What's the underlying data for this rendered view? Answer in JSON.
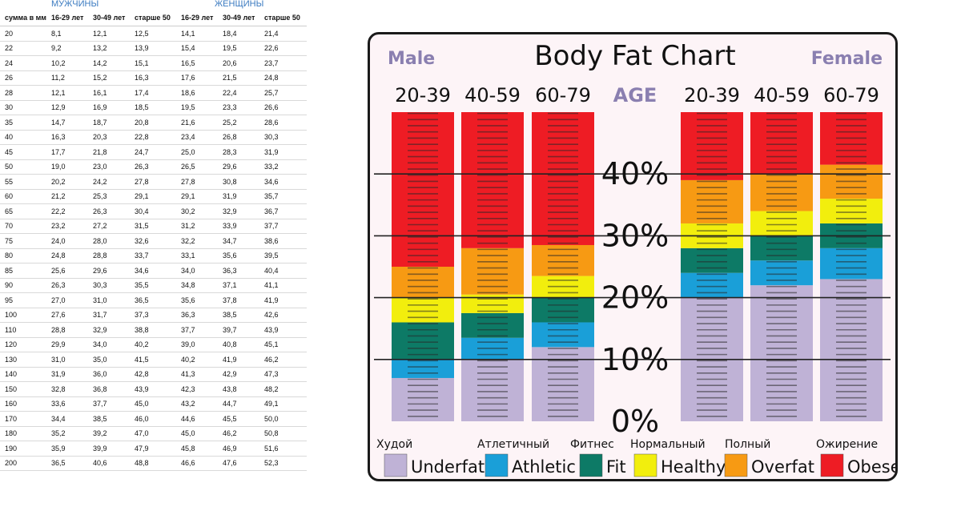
{
  "table": {
    "group_headers": {
      "men": "МУЖЧИНЫ",
      "women": "ЖЕНЩИНЫ"
    },
    "columns": [
      "сумма в мм",
      "16-29 лет",
      "30-49 лет",
      "старше 50",
      "16-29 лет",
      "30-49 лет",
      "старше 50"
    ],
    "rows": [
      [
        "20",
        "8,1",
        "12,1",
        "12,5",
        "14,1",
        "18,4",
        "21,4"
      ],
      [
        "22",
        "9,2",
        "13,2",
        "13,9",
        "15,4",
        "19,5",
        "22,6"
      ],
      [
        "24",
        "10,2",
        "14,2",
        "15,1",
        "16,5",
        "20,6",
        "23,7"
      ],
      [
        "26",
        "11,2",
        "15,2",
        "16,3",
        "17,6",
        "21,5",
        "24,8"
      ],
      [
        "28",
        "12,1",
        "16,1",
        "17,4",
        "18,6",
        "22,4",
        "25,7"
      ],
      [
        "30",
        "12,9",
        "16,9",
        "18,5",
        "19,5",
        "23,3",
        "26,6"
      ],
      [
        "35",
        "14,7",
        "18,7",
        "20,8",
        "21,6",
        "25,2",
        "28,6"
      ],
      [
        "40",
        "16,3",
        "20,3",
        "22,8",
        "23,4",
        "26,8",
        "30,3"
      ],
      [
        "45",
        "17,7",
        "21,8",
        "24,7",
        "25,0",
        "28,3",
        "31,9"
      ],
      [
        "50",
        "19,0",
        "23,0",
        "26,3",
        "26,5",
        "29,6",
        "33,2"
      ],
      [
        "55",
        "20,2",
        "24,2",
        "27,8",
        "27,8",
        "30,8",
        "34,6"
      ],
      [
        "60",
        "21,2",
        "25,3",
        "29,1",
        "29,1",
        "31,9",
        "35,7"
      ],
      [
        "65",
        "22,2",
        "26,3",
        "30,4",
        "30,2",
        "32,9",
        "36,7"
      ],
      [
        "70",
        "23,2",
        "27,2",
        "31,5",
        "31,2",
        "33,9",
        "37,7"
      ],
      [
        "75",
        "24,0",
        "28,0",
        "32,6",
        "32,2",
        "34,7",
        "38,6"
      ],
      [
        "80",
        "24,8",
        "28,8",
        "33,7",
        "33,1",
        "35,6",
        "39,5"
      ],
      [
        "85",
        "25,6",
        "29,6",
        "34,6",
        "34,0",
        "36,3",
        "40,4"
      ],
      [
        "90",
        "26,3",
        "30,3",
        "35,5",
        "34,8",
        "37,1",
        "41,1"
      ],
      [
        "95",
        "27,0",
        "31,0",
        "36,5",
        "35,6",
        "37,8",
        "41,9"
      ],
      [
        "100",
        "27,6",
        "31,7",
        "37,3",
        "36,3",
        "38,5",
        "42,6"
      ],
      [
        "110",
        "28,8",
        "32,9",
        "38,8",
        "37,7",
        "39,7",
        "43,9"
      ],
      [
        "120",
        "29,9",
        "34,0",
        "40,2",
        "39,0",
        "40,8",
        "45,1"
      ],
      [
        "130",
        "31,0",
        "35,0",
        "41,5",
        "40,2",
        "41,9",
        "46,2"
      ],
      [
        "140",
        "31,9",
        "36,0",
        "42,8",
        "41,3",
        "42,9",
        "47,3"
      ],
      [
        "150",
        "32,8",
        "36,8",
        "43,9",
        "42,3",
        "43,8",
        "48,2"
      ],
      [
        "160",
        "33,6",
        "37,7",
        "45,0",
        "43,2",
        "44,7",
        "49,1"
      ],
      [
        "170",
        "34,4",
        "38,5",
        "46,0",
        "44,6",
        "45,5",
        "50,0"
      ],
      [
        "180",
        "35,2",
        "39,2",
        "47,0",
        "45,0",
        "46,2",
        "50,8"
      ],
      [
        "190",
        "35,9",
        "39,9",
        "47,9",
        "45,8",
        "46,9",
        "51,6"
      ],
      [
        "200",
        "36,5",
        "40,6",
        "48,8",
        "46,6",
        "47,6",
        "52,3"
      ]
    ]
  },
  "chart_data": {
    "type": "bar",
    "title": "Body Fat Chart",
    "male_label": "Male",
    "female_label": "Female",
    "age_label": "AGE",
    "ylim": [
      0,
      50
    ],
    "y_ticks": [
      "0%",
      "10%",
      "20%",
      "30%",
      "40%"
    ],
    "y_tick_values": [
      0,
      10,
      20,
      30,
      40
    ],
    "categories": [
      "Underfat",
      "Athletic",
      "Fit",
      "Healthy",
      "Overfat",
      "Obese"
    ],
    "category_colors": {
      "Underfat": "#bfb2d6",
      "Athletic": "#1a9fd8",
      "Fit": "#0d7a66",
      "Healthy": "#f2ee0d",
      "Overfat": "#f79a13",
      "Obese": "#ee1c24"
    },
    "series": [
      {
        "name": "Male",
        "group": "Male",
        "age": "20-39",
        "bounds": [
          0,
          7,
          10,
          16,
          20,
          25,
          50
        ]
      },
      {
        "name": "Male",
        "group": "Male",
        "age": "40-59",
        "bounds": [
          0,
          10,
          13.5,
          17.5,
          20.5,
          28,
          50
        ]
      },
      {
        "name": "Male",
        "group": "Male",
        "age": "60-79",
        "bounds": [
          0,
          12,
          16,
          20,
          23.5,
          28.5,
          50
        ]
      },
      {
        "name": "Female",
        "group": "Female",
        "age": "20-39",
        "bounds": [
          0,
          20,
          24,
          28,
          32,
          39,
          50
        ]
      },
      {
        "name": "Female",
        "group": "Female",
        "age": "40-59",
        "bounds": [
          0,
          22,
          26,
          30,
          34,
          40,
          50
        ]
      },
      {
        "name": "Female",
        "group": "Female",
        "age": "60-79",
        "bounds": [
          0,
          23,
          28,
          32,
          36,
          41.5,
          50
        ]
      }
    ],
    "legend": [
      {
        "ru": "Худой",
        "en": "Underfat"
      },
      {
        "ru": "Атлетичный",
        "en": "Athletic"
      },
      {
        "ru": "Фитнес",
        "en": "Fit"
      },
      {
        "ru": "Нормальный",
        "en": "Healthy"
      },
      {
        "ru": "Полный",
        "en": "Overfat"
      },
      {
        "ru": "Ожирение",
        "en": "Obese"
      }
    ],
    "grid": true
  }
}
